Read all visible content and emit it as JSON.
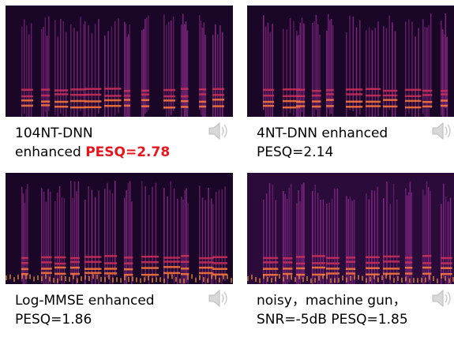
{
  "panels": [
    {
      "line1": "104NT-DNN",
      "line2": "enhanced",
      "highlight": "PESQ=2.78"
    },
    {
      "line1": "4NT-DNN enhanced",
      "line2": "PESQ=2.14"
    },
    {
      "line1": "Log-MMSE enhanced",
      "line2": "PESQ=1.86"
    },
    {
      "line1": "noisy，machine gun，",
      "line2": "SNR=-5dB PESQ=1.85"
    }
  ]
}
